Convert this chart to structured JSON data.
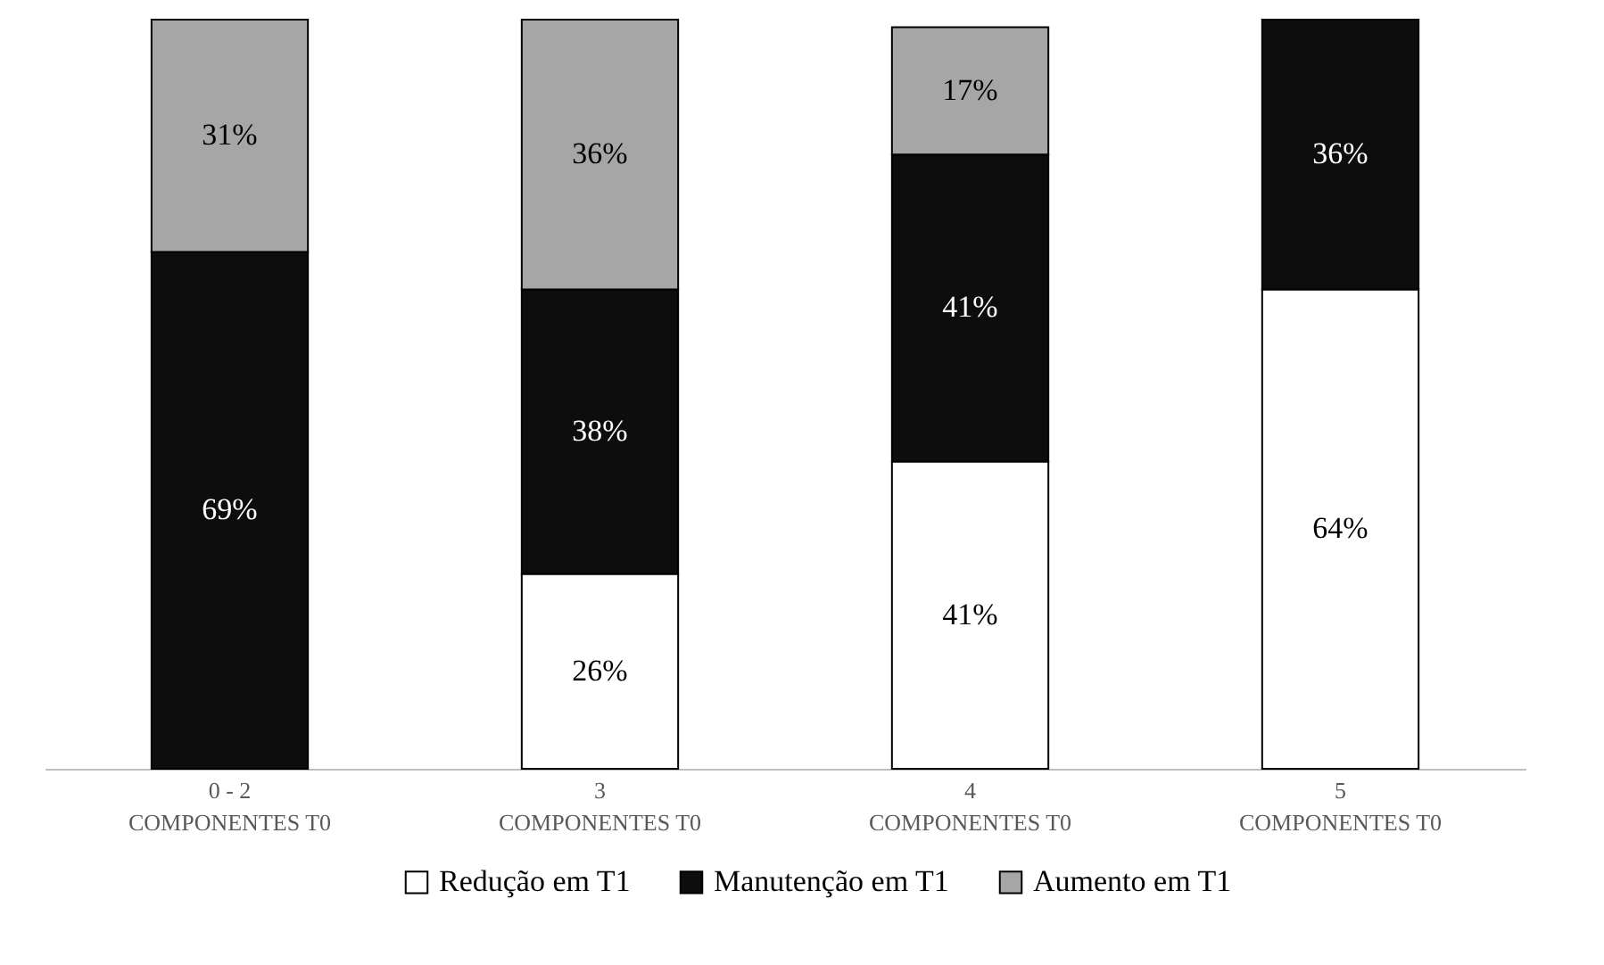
{
  "chart_data": {
    "type": "bar",
    "stacked": true,
    "categories": [
      "0  - 2\nCOMPONENTES T0",
      "3\nCOMPONENTES T0",
      "4\nCOMPONENTES T0",
      "5\nCOMPONENTES T0"
    ],
    "series": [
      {
        "name": "Redução em T1",
        "color": "#ffffff",
        "values": [
          0,
          26,
          41,
          64
        ],
        "value_labels": [
          null,
          "26%",
          "41%",
          "64%"
        ]
      },
      {
        "name": "Manutenção em T1",
        "color": "#0d0d0d",
        "values": [
          69,
          38,
          41,
          36
        ],
        "value_labels": [
          "69%",
          "38%",
          "41%",
          "36%"
        ]
      },
      {
        "name": "Aumento em T1",
        "color": "#a6a6a6",
        "values": [
          31,
          36,
          17,
          0
        ],
        "value_labels": [
          "31%",
          "36%",
          "17%",
          null
        ]
      }
    ],
    "legend": "bottom",
    "grid": false
  }
}
